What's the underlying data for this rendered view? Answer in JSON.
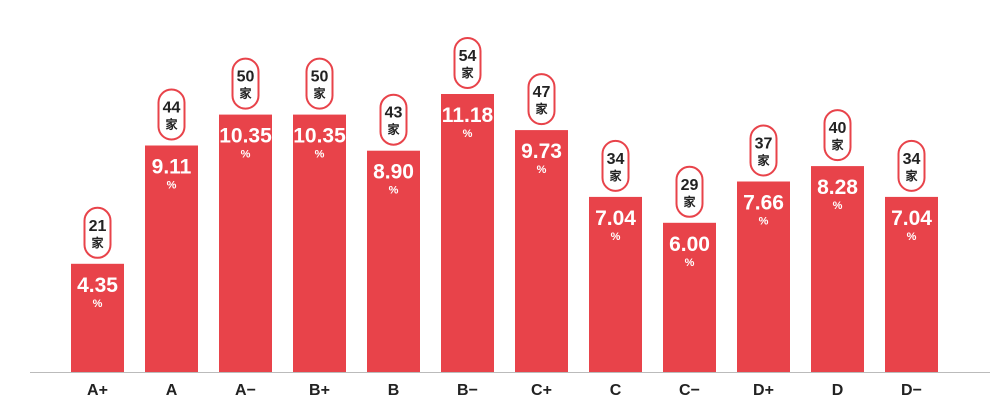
{
  "chart_data": {
    "type": "bar",
    "categories": [
      "A+",
      "A",
      "A−",
      "B+",
      "B",
      "B−",
      "C+",
      "C",
      "C−",
      "D+",
      "D",
      "D−"
    ],
    "values": [
      4.35,
      9.11,
      10.35,
      10.35,
      8.9,
      11.18,
      9.73,
      7.04,
      6.0,
      7.66,
      8.28,
      7.04
    ],
    "value_labels": [
      "4.35",
      "9.11",
      "10.35",
      "10.35",
      "8.90",
      "11.18",
      "9.73",
      "7.04",
      "6.00",
      "7.66",
      "8.28",
      "7.04"
    ],
    "value_unit": "%",
    "counts": [
      21,
      44,
      50,
      50,
      43,
      54,
      47,
      34,
      29,
      37,
      40,
      34
    ],
    "count_unit": "家",
    "title": "",
    "xlabel": "",
    "ylabel": "",
    "ylim": [
      0,
      12
    ],
    "grid": false,
    "colors": {
      "bar": "#e8434a",
      "badge_border": "#e8434a",
      "badge_fill": "#ffffff",
      "axis": "#bbbbbb",
      "value_text": "#ffffff",
      "count_text": "#222222",
      "tick_text": "#222222"
    }
  }
}
